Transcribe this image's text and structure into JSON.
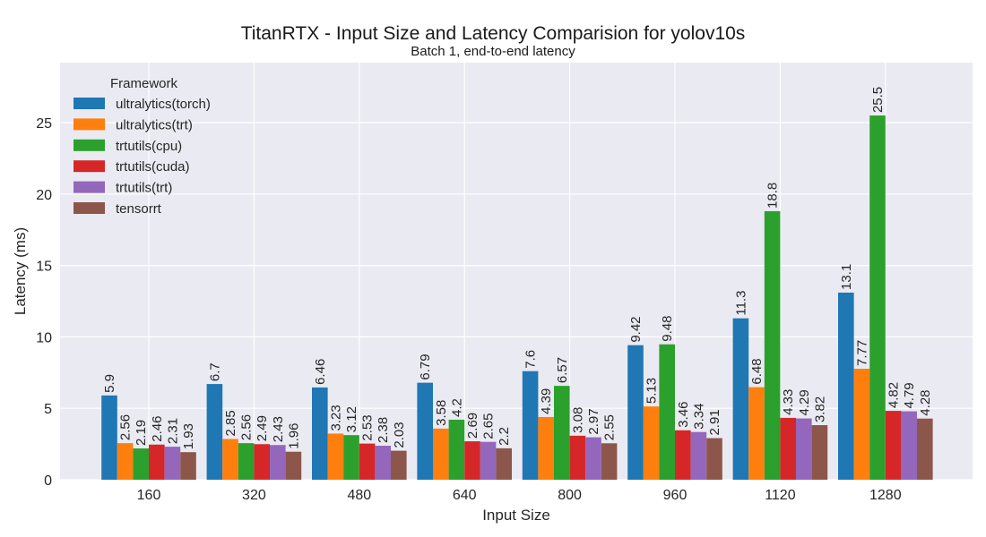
{
  "chart_data": {
    "type": "bar",
    "title": "TitanRTX - Input Size and Latency Comparision for yolov10s",
    "subtitle": "Batch 1, end-to-end latency",
    "xlabel": "Input Size",
    "ylabel": "Latency (ms)",
    "categories": [
      "160",
      "320",
      "480",
      "640",
      "800",
      "960",
      "1120",
      "1280"
    ],
    "ylim": [
      0,
      29.2
    ],
    "yticks": [
      0,
      5,
      10,
      15,
      20,
      25
    ],
    "grid": true,
    "legend_title": "Framework",
    "legend_position": "top-left",
    "series": [
      {
        "name": "ultralytics(torch)",
        "color": "#1f77b4",
        "values": [
          5.9,
          6.7,
          6.46,
          6.79,
          7.6,
          9.42,
          11.3,
          13.1
        ]
      },
      {
        "name": "ultralytics(trt)",
        "color": "#ff7f0e",
        "values": [
          2.56,
          2.85,
          3.23,
          3.58,
          4.39,
          5.13,
          6.48,
          7.77
        ]
      },
      {
        "name": "trtutils(cpu)",
        "color": "#2ca02c",
        "values": [
          2.19,
          2.56,
          3.12,
          4.2,
          6.57,
          9.48,
          18.8,
          25.5
        ]
      },
      {
        "name": "trtutils(cuda)",
        "color": "#d62728",
        "values": [
          2.46,
          2.49,
          2.53,
          2.69,
          3.08,
          3.46,
          4.33,
          4.82
        ]
      },
      {
        "name": "trtutils(trt)",
        "color": "#9467bd",
        "values": [
          2.31,
          2.43,
          2.38,
          2.65,
          2.97,
          3.34,
          4.29,
          4.79
        ]
      },
      {
        "name": "tensorrt",
        "color": "#8c564b",
        "values": [
          1.93,
          1.96,
          2.03,
          2.2,
          2.55,
          2.91,
          3.82,
          4.28
        ]
      }
    ]
  }
}
